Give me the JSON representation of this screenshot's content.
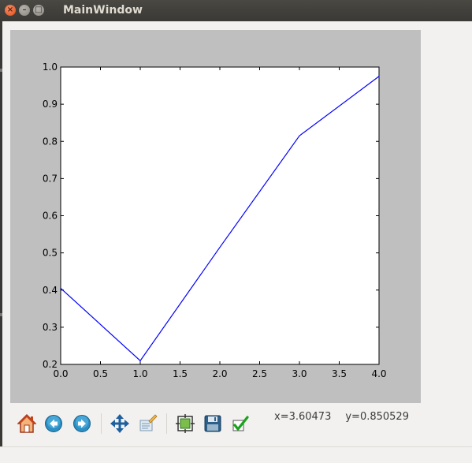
{
  "window": {
    "title": "MainWindow",
    "close_glyph": "×",
    "minimize_glyph": "–",
    "maximize_glyph": "□"
  },
  "toolbar": {
    "items": [
      {
        "name": "home-icon",
        "tooltip": "Home"
      },
      {
        "name": "back-icon",
        "tooltip": "Back"
      },
      {
        "name": "forward-icon",
        "tooltip": "Forward"
      },
      {
        "name": "pan-icon",
        "tooltip": "Pan"
      },
      {
        "name": "zoom-icon",
        "tooltip": "Zoom"
      },
      {
        "name": "subplots-icon",
        "tooltip": "Subplots"
      },
      {
        "name": "save-icon",
        "tooltip": "Save"
      },
      {
        "name": "edit-curves-icon",
        "tooltip": "Edit curves"
      }
    ],
    "coords_x": "x=3.60473",
    "coords_y": "y=0.850529"
  },
  "chart_data": {
    "type": "line",
    "x": [
      0,
      1,
      2,
      3,
      4
    ],
    "series": [
      {
        "values": [
          0.405,
          0.21,
          0.515,
          0.815,
          0.975
        ],
        "color": "#0000ff"
      }
    ],
    "xlim": [
      0.0,
      4.0
    ],
    "ylim": [
      0.2,
      1.0
    ],
    "xticks": [
      "0.0",
      "0.5",
      "1.0",
      "1.5",
      "2.0",
      "2.5",
      "3.0",
      "3.5",
      "4.0"
    ],
    "yticks": [
      "0.2",
      "0.3",
      "0.4",
      "0.5",
      "0.6",
      "0.7",
      "0.8",
      "0.9",
      "1.0"
    ],
    "xtick_values": [
      0.0,
      0.5,
      1.0,
      1.5,
      2.0,
      2.5,
      3.0,
      3.5,
      4.0
    ],
    "ytick_values": [
      0.2,
      0.3,
      0.4,
      0.5,
      0.6,
      0.7,
      0.8,
      0.9,
      1.0
    ],
    "title": "",
    "xlabel": "",
    "ylabel": "",
    "grid": false,
    "figure_facecolor": "#bfbfbf",
    "axes_facecolor": "#ffffff"
  }
}
